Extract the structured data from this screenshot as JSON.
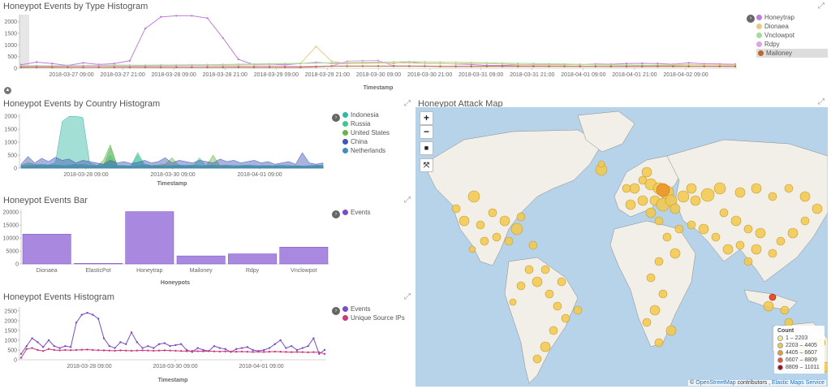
{
  "type_hist": {
    "title": "Honeypot Events by Type Histogram",
    "xlabel": "Timestamp",
    "legend": [
      {
        "label": "Honeytrap",
        "color": "#c07fd6"
      },
      {
        "label": "Dionaea",
        "color": "#e3cc84"
      },
      {
        "label": "Vnclowpot",
        "color": "#a8d9a0"
      },
      {
        "label": "Rdpy",
        "color": "#dba6e6"
      },
      {
        "label": "Mailoney",
        "color": "#b8692d"
      }
    ]
  },
  "country_hist": {
    "title": "Honeypot Events by Country Histogram",
    "xlabel": "Timestamp",
    "legend": [
      {
        "label": "Indonesia",
        "color": "#36b7a4"
      },
      {
        "label": "Russia",
        "color": "#43c58d"
      },
      {
        "label": "United States",
        "color": "#6ab34a"
      },
      {
        "label": "China",
        "color": "#3f57b5"
      },
      {
        "label": "Netherlands",
        "color": "#3e8fbf"
      }
    ]
  },
  "bar": {
    "title": "Honeypot Events Bar",
    "xlabel": "Honeypots",
    "legend": [
      {
        "label": "Events",
        "color": "#7c4cc4"
      }
    ]
  },
  "events_hist": {
    "title": "Honeypot Events Histogram",
    "xlabel": "Timestamp",
    "legend": [
      {
        "label": "Events",
        "color": "#7c4cc4"
      },
      {
        "label": "Unique Source IPs",
        "color": "#cc3a7c"
      }
    ]
  },
  "map": {
    "title": "Honeypot Attack Map",
    "controls": {
      "zoom_in": "+",
      "zoom_out": "−",
      "draw": "■",
      "fit": "⤧"
    },
    "legend_title": "Count",
    "legend": [
      {
        "label": "1 – 2203",
        "color": "#f8ec9b"
      },
      {
        "label": "2203 – 4405",
        "color": "#f3c94b"
      },
      {
        "label": "4405 – 6607",
        "color": "#ee9b2e"
      },
      {
        "label": "6607 – 8809",
        "color": "#e5552a"
      },
      {
        "label": "8809 – 11011",
        "color": "#b3001f"
      }
    ],
    "attribution": {
      "prefix": "© ",
      "osm": "OpenStreetMap",
      "middle": " contributors , ",
      "ems": "Elastic Maps Service"
    }
  },
  "chart_data": [
    {
      "type": "line",
      "title": "Honeypot Events by Type Histogram",
      "xlabel": "Timestamp",
      "ylabel": "",
      "ylim": [
        0,
        2300
      ],
      "x_ticks": [
        "2018-03-27 09:00",
        "2018-03-27 21:00",
        "2018-03-28 09:00",
        "2018-03-28 21:00",
        "2018-03-29 09:00",
        "2018-03-29 21:00",
        "2018-03-30 09:00",
        "2018-03-30 21:00",
        "2018-03-31 09:00",
        "2018-03-31 21:00",
        "2018-04-01 09:00",
        "2018-04-01 21:00",
        "2018-04-02 09:00"
      ],
      "y_ticks": [
        0,
        500,
        1000,
        1500,
        2000
      ],
      "series": [
        {
          "name": "Honeytrap",
          "values": [
            150,
            260,
            200,
            120,
            230,
            160,
            200,
            320,
            1700,
            2200,
            2250,
            2250,
            2150,
            1300,
            380,
            150,
            170,
            150,
            200,
            250,
            210,
            200,
            230,
            240,
            210,
            270,
            200,
            200,
            180,
            160,
            120,
            120,
            150,
            160,
            160,
            170,
            150,
            180,
            170,
            200,
            210,
            200,
            170,
            230,
            190,
            180,
            170
          ]
        },
        {
          "name": "Dionaea",
          "values": [
            60,
            80,
            70,
            90,
            110,
            120,
            140,
            130,
            100,
            110,
            120,
            130,
            150,
            140,
            140,
            160,
            170,
            190,
            200,
            930,
            300,
            200,
            210,
            220,
            230,
            220,
            210,
            200,
            190,
            210,
            200,
            180,
            160,
            150,
            150,
            140,
            160,
            150,
            140,
            130,
            120,
            140,
            150,
            160,
            150,
            140,
            130
          ]
        },
        {
          "name": "Vnclowpot",
          "values": [
            100,
            110,
            105,
            115,
            110,
            120,
            125,
            130,
            130,
            140,
            140,
            150,
            150,
            160,
            170,
            180,
            190,
            200,
            210,
            220,
            230,
            240,
            250,
            260,
            270,
            280,
            270,
            260,
            250,
            240,
            230,
            220,
            210,
            200,
            190,
            180,
            170,
            160,
            150,
            140,
            130,
            120,
            110,
            100,
            90,
            80,
            70
          ]
        },
        {
          "name": "Rdpy",
          "values": [
            80,
            90,
            85,
            90,
            95,
            100,
            90,
            85,
            90,
            95,
            100,
            110,
            105,
            100,
            90,
            95,
            100,
            90,
            80,
            85,
            90,
            300,
            320,
            330,
            100,
            90,
            85,
            80,
            75,
            80,
            85,
            90,
            95,
            100,
            90,
            85,
            80,
            75,
            70,
            65,
            70,
            75,
            80,
            85,
            90,
            85,
            80
          ]
        },
        {
          "name": "Mailoney",
          "values": [
            40,
            40,
            40,
            40,
            40,
            40,
            40,
            40,
            40,
            40,
            40,
            40,
            40,
            40,
            40,
            40,
            40,
            40,
            40,
            60,
            90,
            90,
            90,
            90,
            90,
            90,
            90,
            80,
            80,
            80,
            80,
            80,
            80,
            80,
            80,
            80,
            80,
            80,
            80,
            80,
            80,
            80,
            80,
            80,
            80,
            80,
            80
          ]
        }
      ]
    },
    {
      "type": "area",
      "title": "Honeypot Events by Country Histogram",
      "xlabel": "Timestamp",
      "ylabel": "",
      "ylim": [
        0,
        2100
      ],
      "x_ticks": [
        "2018-03-28 09:00",
        "2018-03-30 09:00",
        "2018-04-01 09:00"
      ],
      "y_ticks": [
        0,
        500,
        1000,
        1500,
        2000
      ],
      "series": [
        {
          "name": "Indonesia",
          "values": [
            50,
            60,
            80,
            100,
            120,
            200,
            1800,
            2000,
            2000,
            1950,
            200,
            100,
            150,
            500,
            100,
            100,
            80,
            600,
            150,
            100,
            80,
            100,
            90,
            80,
            100,
            120,
            100,
            80,
            90,
            100,
            120,
            100,
            90,
            80,
            70,
            100,
            90,
            80,
            70,
            60,
            50,
            60,
            70,
            80,
            90
          ]
        },
        {
          "name": "Russia",
          "values": [
            40,
            60,
            50,
            40,
            70,
            60,
            50,
            40,
            60,
            50,
            40,
            60,
            70,
            800,
            60,
            50,
            40,
            500,
            60,
            50,
            40,
            60,
            70,
            80,
            60,
            50,
            400,
            60,
            50,
            40,
            60,
            50,
            40,
            60,
            50,
            40,
            60,
            50,
            40,
            60,
            50,
            40,
            60,
            50,
            40
          ]
        },
        {
          "name": "United States",
          "values": [
            100,
            200,
            150,
            100,
            80,
            120,
            100,
            80,
            120,
            150,
            100,
            80,
            300,
            900,
            100,
            80,
            70,
            60,
            80,
            100,
            120,
            150,
            400,
            100,
            80,
            70,
            60,
            100,
            500,
            80,
            70,
            60,
            100,
            80,
            70,
            60,
            100,
            80,
            70,
            60,
            100,
            80,
            70,
            60,
            100
          ]
        },
        {
          "name": "China",
          "values": [
            150,
            450,
            200,
            380,
            250,
            420,
            300,
            350,
            200,
            300,
            250,
            200,
            150,
            300,
            200,
            250,
            180,
            220,
            300,
            200,
            250,
            400,
            200,
            300,
            250,
            200,
            300,
            250,
            200,
            350,
            250,
            300,
            200,
            250,
            300,
            200,
            250,
            150,
            200,
            250,
            150,
            600,
            200,
            150,
            200
          ]
        },
        {
          "name": "Netherlands",
          "values": [
            80,
            120,
            100,
            150,
            120,
            100,
            80,
            120,
            150,
            100,
            80,
            60,
            100,
            120,
            100,
            80,
            60,
            100,
            120,
            100,
            80,
            60,
            100,
            120,
            100,
            80,
            60,
            100,
            120,
            100,
            80,
            60,
            100,
            120,
            100,
            80,
            60,
            100,
            120,
            100,
            80,
            60,
            100,
            120,
            100
          ]
        }
      ]
    },
    {
      "type": "bar",
      "title": "Honeypot Events Bar",
      "xlabel": "Honeypots",
      "ylabel": "",
      "ylim": [
        0,
        21000
      ],
      "y_ticks": [
        0,
        5000,
        10000,
        15000,
        20000
      ],
      "categories": [
        "Dionaea",
        "ElasticPot",
        "Honeytrap",
        "Mailoney",
        "Rdpy",
        "Vnclowpot"
      ],
      "series": [
        {
          "name": "Events",
          "values": [
            11500,
            200,
            20200,
            3100,
            3900,
            6500
          ]
        }
      ]
    },
    {
      "type": "line",
      "title": "Honeypot Events Histogram",
      "xlabel": "Timestamp",
      "ylabel": "",
      "ylim": [
        0,
        2700
      ],
      "x_ticks": [
        "2018-03-28 09:00",
        "2018-03-30 09:00",
        "2018-04-01 09:00"
      ],
      "y_ticks": [
        0,
        500,
        1000,
        1500,
        2000,
        2500
      ],
      "series": [
        {
          "name": "Events",
          "values": [
            300,
            700,
            1100,
            900,
            650,
            1000,
            700,
            600,
            700,
            650,
            1900,
            2300,
            2400,
            2300,
            2100,
            1100,
            700,
            600,
            900,
            800,
            1400,
            900,
            600,
            700,
            600,
            800,
            850,
            700,
            750,
            800,
            500,
            400,
            600,
            500,
            450,
            700,
            600,
            550,
            400,
            550,
            600,
            650,
            500,
            450,
            500,
            600,
            800,
            1000,
            600,
            700,
            500,
            600,
            700,
            1100,
            300,
            500
          ]
        },
        {
          "name": "Unique Source IPs",
          "values": [
            100,
            550,
            600,
            500,
            450,
            550,
            500,
            480,
            500,
            490,
            500,
            510,
            520,
            500,
            490,
            480,
            470,
            460,
            480,
            470,
            460,
            470,
            480,
            470,
            460,
            470,
            480,
            470,
            460,
            450,
            440,
            450,
            440,
            430,
            440,
            430,
            420,
            430,
            420,
            410,
            420,
            410,
            400,
            410,
            400,
            410,
            420,
            410,
            400,
            390,
            400,
            390,
            380,
            390,
            380,
            300
          ]
        }
      ]
    }
  ]
}
